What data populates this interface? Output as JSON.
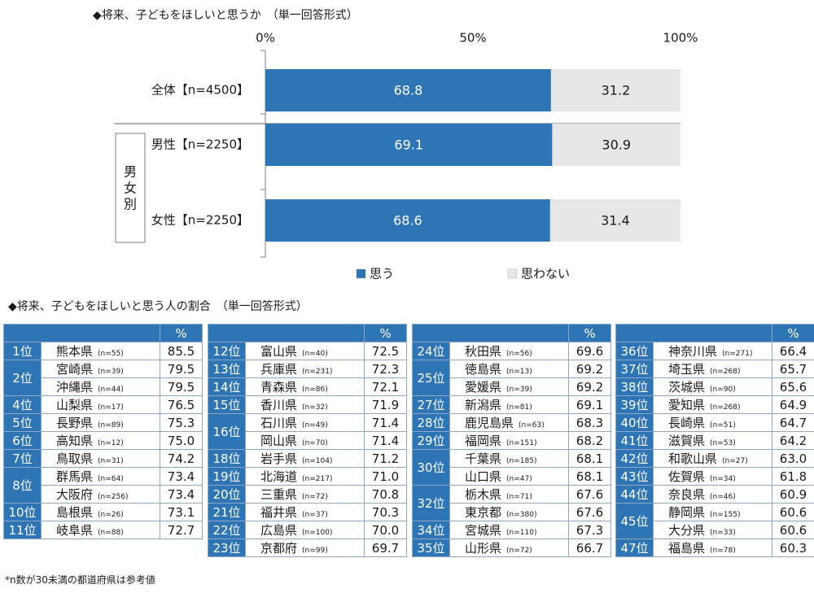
{
  "chart_data": [
    {
      "type": "bar",
      "title": "◆将来、子どもをほしいと思うか　（単一回答形式）",
      "stacked": true,
      "orientation": "horizontal",
      "xlim": [
        0,
        100
      ],
      "tick_labels": [
        "0%",
        "50%",
        "100%"
      ],
      "categories": [
        "全体【n=4500】",
        "男性【n=2250】",
        "女性【n=2250】"
      ],
      "group_label": "男女別",
      "series": [
        {
          "name": "思う",
          "color": "#2e75b6",
          "values": [
            68.8,
            69.1,
            68.6
          ]
        },
        {
          "name": "思わない",
          "color": "#e6e6e6",
          "values": [
            31.2,
            30.9,
            31.4
          ]
        }
      ],
      "legend": "bottom"
    },
    {
      "type": "table",
      "title": "◆将来、子どもをほしいと思う人の割合　（単一回答形式）",
      "header": "%",
      "colors": {
        "header": "#2e75b6",
        "border": "#8fa6c6"
      },
      "columns": [
        [
          {
            "rank": "1位",
            "span": 1,
            "items": [
              {
                "name": "熊本県",
                "n": "(n=55)",
                "value": "85.5"
              }
            ]
          },
          {
            "rank": "2位",
            "span": 2,
            "items": [
              {
                "name": "宮崎県",
                "n": "(n=39)",
                "value": "79.5"
              },
              {
                "name": "沖縄県",
                "n": "(n=44)",
                "value": "79.5"
              }
            ]
          },
          {
            "rank": "4位",
            "span": 1,
            "items": [
              {
                "name": "山梨県",
                "n": "(n=17)",
                "value": "76.5"
              }
            ]
          },
          {
            "rank": "5位",
            "span": 1,
            "items": [
              {
                "name": "長野県",
                "n": "(n=89)",
                "value": "75.3"
              }
            ]
          },
          {
            "rank": "6位",
            "span": 1,
            "items": [
              {
                "name": "高知県",
                "n": "(n=12)",
                "value": "75.0"
              }
            ]
          },
          {
            "rank": "7位",
            "span": 1,
            "items": [
              {
                "name": "鳥取県",
                "n": "(n=31)",
                "value": "74.2"
              }
            ]
          },
          {
            "rank": "8位",
            "span": 2,
            "items": [
              {
                "name": "群馬県",
                "n": "(n=64)",
                "value": "73.4"
              },
              {
                "name": "大阪府",
                "n": "(n=256)",
                "value": "73.4"
              }
            ]
          },
          {
            "rank": "10位",
            "span": 1,
            "items": [
              {
                "name": "島根県",
                "n": "(n=26)",
                "value": "73.1"
              }
            ]
          },
          {
            "rank": "11位",
            "span": 1,
            "items": [
              {
                "name": "岐阜県",
                "n": "(n=88)",
                "value": "72.7"
              }
            ]
          }
        ],
        [
          {
            "rank": "12位",
            "span": 1,
            "items": [
              {
                "name": "富山県",
                "n": "(n=40)",
                "value": "72.5"
              }
            ]
          },
          {
            "rank": "13位",
            "span": 1,
            "items": [
              {
                "name": "兵庫県",
                "n": "(n=231)",
                "value": "72.3"
              }
            ]
          },
          {
            "rank": "14位",
            "span": 1,
            "items": [
              {
                "name": "青森県",
                "n": "(n=86)",
                "value": "72.1"
              }
            ]
          },
          {
            "rank": "15位",
            "span": 1,
            "items": [
              {
                "name": "香川県",
                "n": "(n=32)",
                "value": "71.9"
              }
            ]
          },
          {
            "rank": "16位",
            "span": 2,
            "items": [
              {
                "name": "石川県",
                "n": "(n=49)",
                "value": "71.4"
              },
              {
                "name": "岡山県",
                "n": "(n=70)",
                "value": "71.4"
              }
            ]
          },
          {
            "rank": "18位",
            "span": 1,
            "items": [
              {
                "name": "岩手県",
                "n": "(n=104)",
                "value": "71.2"
              }
            ]
          },
          {
            "rank": "19位",
            "span": 1,
            "items": [
              {
                "name": "北海道",
                "n": "(n=217)",
                "value": "71.0"
              }
            ]
          },
          {
            "rank": "20位",
            "span": 1,
            "items": [
              {
                "name": "三重県",
                "n": "(n=72)",
                "value": "70.8"
              }
            ]
          },
          {
            "rank": "21位",
            "span": 1,
            "items": [
              {
                "name": "福井県",
                "n": "(n=37)",
                "value": "70.3"
              }
            ]
          },
          {
            "rank": "22位",
            "span": 1,
            "items": [
              {
                "name": "広島県",
                "n": "(n=100)",
                "value": "70.0"
              }
            ]
          },
          {
            "rank": "23位",
            "span": 1,
            "items": [
              {
                "name": "京都府",
                "n": "(n=99)",
                "value": "69.7"
              }
            ]
          }
        ],
        [
          {
            "rank": "24位",
            "span": 1,
            "items": [
              {
                "name": "秋田県",
                "n": "(n=56)",
                "value": "69.6"
              }
            ]
          },
          {
            "rank": "25位",
            "span": 2,
            "items": [
              {
                "name": "徳島県",
                "n": "(n=13)",
                "value": "69.2"
              },
              {
                "name": "愛媛県",
                "n": "(n=39)",
                "value": "69.2"
              }
            ]
          },
          {
            "rank": "27位",
            "span": 1,
            "items": [
              {
                "name": "新潟県",
                "n": "(n=81)",
                "value": "69.1"
              }
            ]
          },
          {
            "rank": "28位",
            "span": 1,
            "items": [
              {
                "name": "鹿児島県",
                "n": "(n=63)",
                "value": "68.3"
              }
            ]
          },
          {
            "rank": "29位",
            "span": 1,
            "items": [
              {
                "name": "福岡県",
                "n": "(n=151)",
                "value": "68.2"
              }
            ]
          },
          {
            "rank": "30位",
            "span": 2,
            "items": [
              {
                "name": "千葉県",
                "n": "(n=185)",
                "value": "68.1"
              },
              {
                "name": "山口県",
                "n": "(n=47)",
                "value": "68.1"
              }
            ]
          },
          {
            "rank": "32位",
            "span": 2,
            "items": [
              {
                "name": "栃木県",
                "n": "(n=71)",
                "value": "67.6"
              },
              {
                "name": "東京都",
                "n": "(n=380)",
                "value": "67.6"
              }
            ]
          },
          {
            "rank": "34位",
            "span": 1,
            "items": [
              {
                "name": "宮城県",
                "n": "(n=110)",
                "value": "67.3"
              }
            ]
          },
          {
            "rank": "35位",
            "span": 1,
            "items": [
              {
                "name": "山形県",
                "n": "(n=72)",
                "value": "66.7"
              }
            ]
          }
        ],
        [
          {
            "rank": "36位",
            "span": 1,
            "items": [
              {
                "name": "神奈川県",
                "n": "(n=271)",
                "value": "66.4"
              }
            ]
          },
          {
            "rank": "37位",
            "span": 1,
            "items": [
              {
                "name": "埼玉県",
                "n": "(n=268)",
                "value": "65.7"
              }
            ]
          },
          {
            "rank": "38位",
            "span": 1,
            "items": [
              {
                "name": "茨城県",
                "n": "(n=90)",
                "value": "65.6"
              }
            ]
          },
          {
            "rank": "39位",
            "span": 1,
            "items": [
              {
                "name": "愛知県",
                "n": "(n=268)",
                "value": "64.9"
              }
            ]
          },
          {
            "rank": "40位",
            "span": 1,
            "items": [
              {
                "name": "長崎県",
                "n": "(n=51)",
                "value": "64.7"
              }
            ]
          },
          {
            "rank": "41位",
            "span": 1,
            "items": [
              {
                "name": "滋賀県",
                "n": "(n=53)",
                "value": "64.2"
              }
            ]
          },
          {
            "rank": "42位",
            "span": 1,
            "items": [
              {
                "name": "和歌山県",
                "n": "(n=27)",
                "value": "63.0"
              }
            ]
          },
          {
            "rank": "43位",
            "span": 1,
            "items": [
              {
                "name": "佐賀県",
                "n": "(n=34)",
                "value": "61.8"
              }
            ]
          },
          {
            "rank": "44位",
            "span": 1,
            "items": [
              {
                "name": "奈良県",
                "n": "(n=46)",
                "value": "60.9"
              }
            ]
          },
          {
            "rank": "45位",
            "span": 2,
            "items": [
              {
                "name": "静岡県",
                "n": "(n=155)",
                "value": "60.6"
              },
              {
                "name": "大分県",
                "n": "(n=33)",
                "value": "60.6"
              }
            ]
          },
          {
            "rank": "47位",
            "span": 1,
            "items": [
              {
                "name": "福島県",
                "n": "(n=78)",
                "value": "60.3"
              }
            ]
          }
        ]
      ],
      "footnote": "*n数が30未満の都道府県は参考値"
    }
  ]
}
